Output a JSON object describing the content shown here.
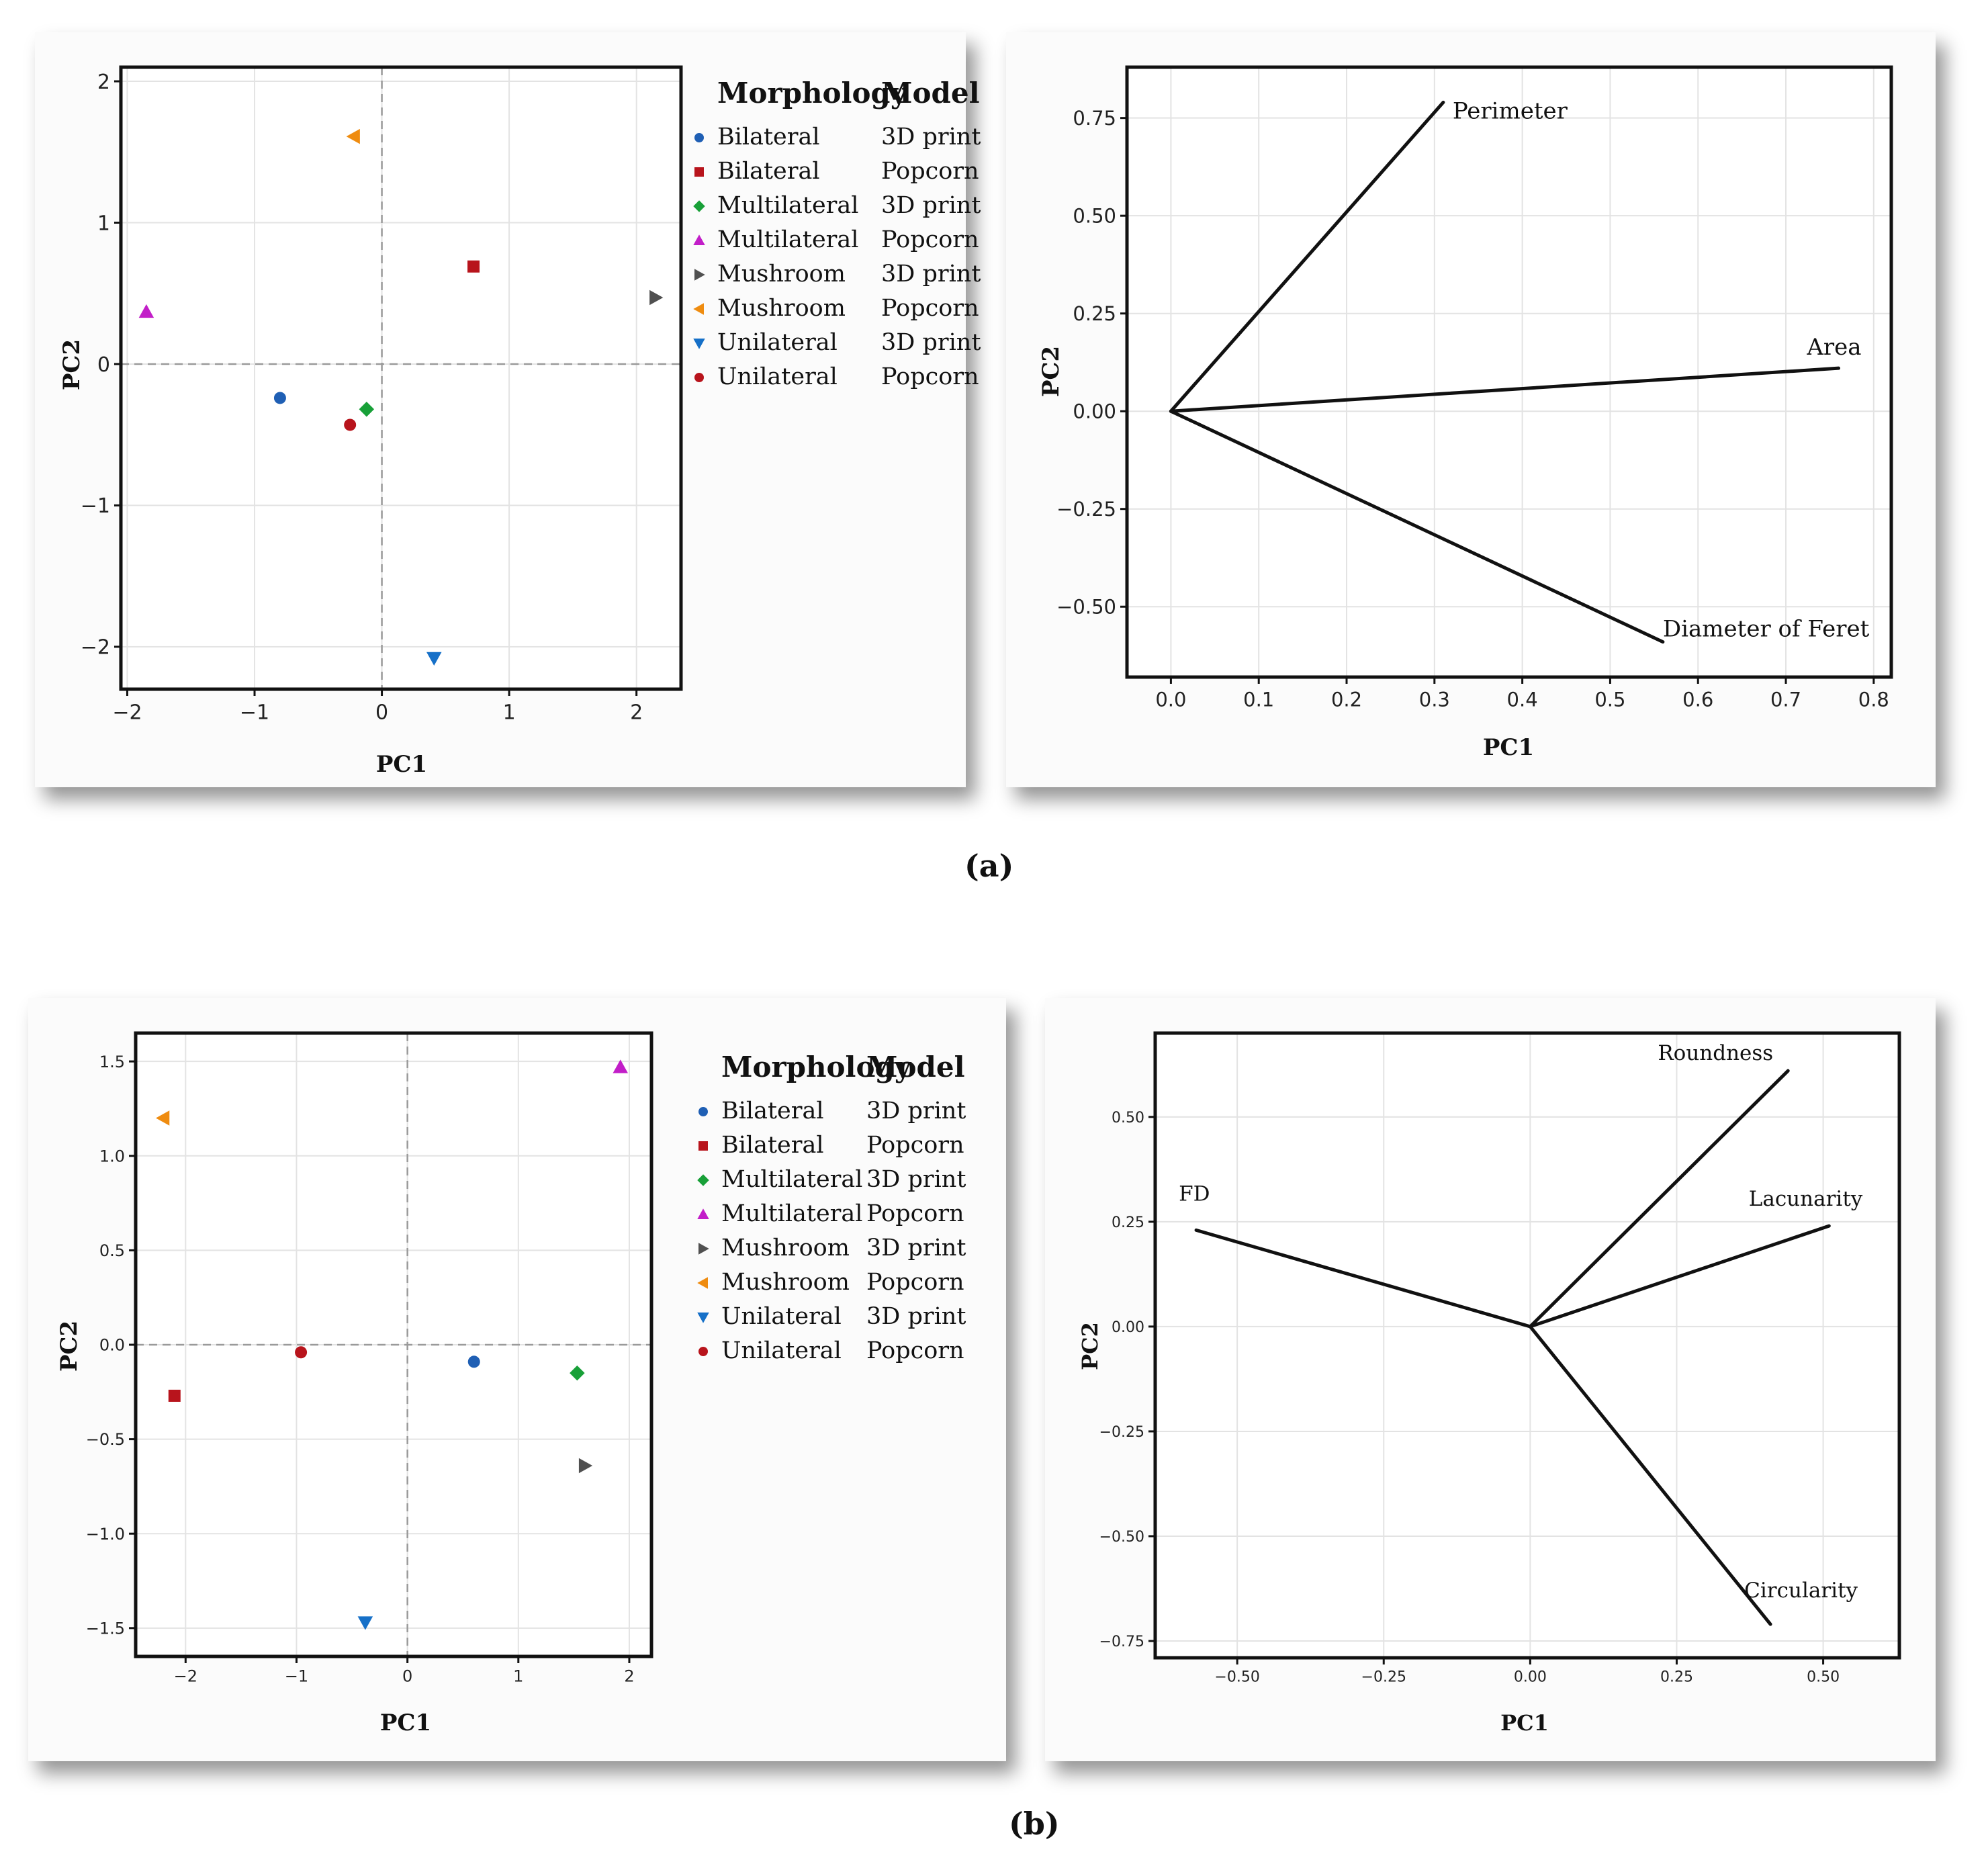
{
  "figure_a": {
    "label": "(a)",
    "scatter": {
      "xlabel": "PC1",
      "ylabel": "PC2",
      "x_ticks": [
        "−2",
        "−1",
        "0",
        "1",
        "2"
      ],
      "y_ticks": [
        "−2",
        "−1",
        "0",
        "1",
        "2"
      ],
      "legend_title_morphology": "Morphology",
      "legend_title_model": "Model"
    },
    "loadings": {
      "xlabel": "PC1",
      "ylabel": "PC2",
      "x_ticks": [
        "0.0",
        "0.1",
        "0.2",
        "0.3",
        "0.4",
        "0.5",
        "0.6",
        "0.7",
        "0.8"
      ],
      "y_ticks": [
        "0.75",
        "0.50",
        "0.25",
        "0.00",
        "−0.25",
        "−0.50"
      ]
    }
  },
  "figure_b": {
    "label": "(b)",
    "scatter": {
      "xlabel": "PC1",
      "ylabel": "PC2",
      "x_ticks": [
        "−2",
        "−1",
        "0",
        "1",
        "2"
      ],
      "y_ticks": [
        "1.5",
        "1.0",
        "0.5",
        "0.0",
        "−0.5",
        "−1.0",
        "−1.5"
      ],
      "legend_title_morphology": "Morphology",
      "legend_title_model": "Model"
    },
    "loadings": {
      "xlabel": "PC1",
      "ylabel": "PC2",
      "x_ticks": [
        "−0.50",
        "−0.25",
        "0.00",
        "0.25",
        "0.50"
      ],
      "y_ticks": [
        "0.50",
        "0.25",
        "0.00",
        "−0.25",
        "−0.50",
        "−0.75"
      ]
    }
  },
  "legend": [
    {
      "morphology": "Bilateral",
      "model": "3D print",
      "color": "#1f5fb4",
      "marker": "circle"
    },
    {
      "morphology": "Bilateral",
      "model": "Popcorn",
      "color": "#b8141c",
      "marker": "square"
    },
    {
      "morphology": "Multilateral",
      "model": "3D print",
      "color": "#18a038",
      "marker": "diamond"
    },
    {
      "morphology": "Multilateral",
      "model": "Popcorn",
      "color": "#c21ec8",
      "marker": "triangle-up"
    },
    {
      "morphology": "Mushroom",
      "model": "3D print",
      "color": "#505050",
      "marker": "triangle-right"
    },
    {
      "morphology": "Mushroom",
      "model": "Popcorn",
      "color": "#ef8c10",
      "marker": "triangle-left"
    },
    {
      "morphology": "Unilateral",
      "model": "3D print",
      "color": "#1670c8",
      "marker": "triangle-down"
    },
    {
      "morphology": "Unilateral",
      "model": "Popcorn",
      "color": "#b8141c",
      "marker": "circle"
    }
  ],
  "chart_data": [
    {
      "id": "a-scores",
      "type": "scatter",
      "title": "",
      "xlabel": "PC1",
      "ylabel": "PC2",
      "xlim": [
        -2.05,
        2.35
      ],
      "ylim": [
        -2.3,
        2.1
      ],
      "grid": true,
      "reference_lines": {
        "x": 0,
        "y": 0
      },
      "series": [
        {
          "name": "Bilateral 3D print",
          "x": -0.8,
          "y": -0.24
        },
        {
          "name": "Bilateral Popcorn",
          "x": 0.72,
          "y": 0.69
        },
        {
          "name": "Multilateral 3D print",
          "x": -0.12,
          "y": -0.32
        },
        {
          "name": "Multilateral Popcorn",
          "x": -1.85,
          "y": 0.37
        },
        {
          "name": "Mushroom 3D print",
          "x": 2.15,
          "y": 0.47
        },
        {
          "name": "Mushroom Popcorn",
          "x": -0.22,
          "y": 1.61
        },
        {
          "name": "Unilateral 3D print",
          "x": 0.41,
          "y": -2.08
        },
        {
          "name": "Unilateral Popcorn",
          "x": -0.25,
          "y": -0.43
        }
      ]
    },
    {
      "id": "a-loadings",
      "type": "line",
      "title": "",
      "xlabel": "PC1",
      "ylabel": "PC2",
      "xlim": [
        -0.05,
        0.82
      ],
      "ylim": [
        -0.68,
        0.88
      ],
      "grid": true,
      "vectors": [
        {
          "name": "Perimeter",
          "x": 0.31,
          "y": 0.79
        },
        {
          "name": "Area",
          "x": 0.76,
          "y": 0.11
        },
        {
          "name": "Diameter of Feret",
          "x": 0.56,
          "y": -0.59
        }
      ]
    },
    {
      "id": "b-scores",
      "type": "scatter",
      "title": "",
      "xlabel": "PC1",
      "ylabel": "PC2",
      "xlim": [
        -2.45,
        2.2
      ],
      "ylim": [
        -1.65,
        1.65
      ],
      "grid": true,
      "reference_lines": {
        "x": 0,
        "y": 0
      },
      "series": [
        {
          "name": "Bilateral 3D print",
          "x": 0.6,
          "y": -0.09
        },
        {
          "name": "Bilateral Popcorn",
          "x": -2.1,
          "y": -0.27
        },
        {
          "name": "Multilateral 3D print",
          "x": 1.53,
          "y": -0.15
        },
        {
          "name": "Multilateral Popcorn",
          "x": 1.92,
          "y": 1.47
        },
        {
          "name": "Mushroom 3D print",
          "x": 1.6,
          "y": -0.64
        },
        {
          "name": "Mushroom Popcorn",
          "x": -2.2,
          "y": 1.2
        },
        {
          "name": "Unilateral 3D print",
          "x": -0.38,
          "y": -1.47
        },
        {
          "name": "Unilateral Popcorn",
          "x": -0.96,
          "y": -0.04
        }
      ]
    },
    {
      "id": "b-loadings",
      "type": "line",
      "title": "",
      "xlabel": "PC1",
      "ylabel": "PC2",
      "xlim": [
        -0.64,
        0.63
      ],
      "ylim": [
        -0.79,
        0.7
      ],
      "grid": true,
      "vectors": [
        {
          "name": "FD",
          "x": -0.57,
          "y": 0.23
        },
        {
          "name": "Roundness",
          "x": 0.44,
          "y": 0.61
        },
        {
          "name": "Lacunarity",
          "x": 0.51,
          "y": 0.24
        },
        {
          "name": "Circularity",
          "x": 0.41,
          "y": -0.71
        }
      ]
    }
  ]
}
